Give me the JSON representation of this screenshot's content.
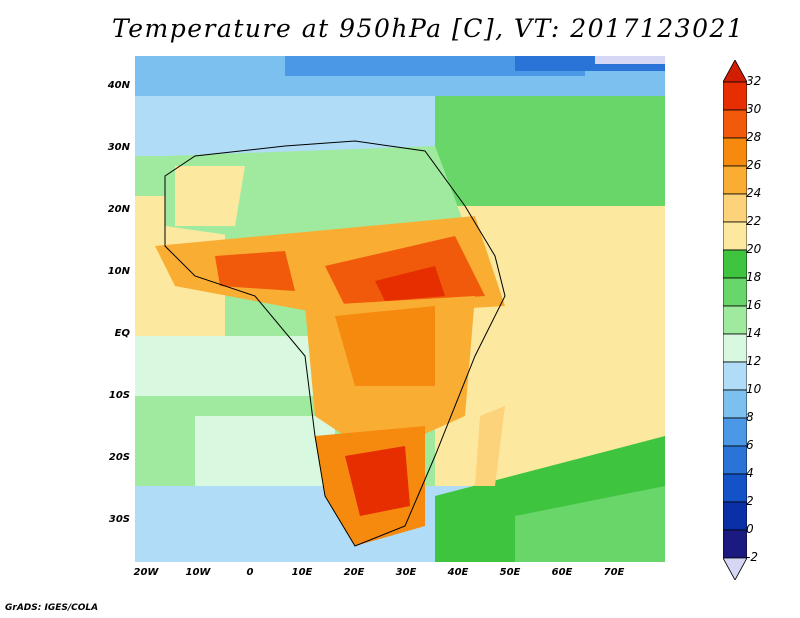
{
  "title": "Temperature at 950hPa [C], VT: 2017123021",
  "credit": "GrADS: IGES/COLA",
  "lat_labels": [
    "40N",
    "30N",
    "20N",
    "10N",
    "EQ",
    "10S",
    "20S",
    "30S"
  ],
  "lon_labels": [
    "20W",
    "10W",
    "0",
    "10E",
    "20E",
    "30E",
    "40E",
    "50E",
    "60E",
    "70E"
  ],
  "colorbar": {
    "labels": [
      "32",
      "30",
      "28",
      "26",
      "24",
      "22",
      "20",
      "18",
      "16",
      "14",
      "12",
      "10",
      "8",
      "6",
      "4",
      "2",
      "0",
      "-2"
    ],
    "colors": [
      "#e62e00",
      "#f05a0a",
      "#f58a0f",
      "#f9ae33",
      "#fcd27a",
      "#fde8a0",
      "#3ec43e",
      "#68d668",
      "#a0eaa0",
      "#d8f8e0",
      "#b0dcf8",
      "#7cc0f0",
      "#4a98e6",
      "#2a74d8",
      "#1452c8",
      "#0a30a8",
      "#1a1a80"
    ],
    "top_arrow_color": "#d21e00",
    "bottom_arrow_color": "#d6d6f5"
  }
}
